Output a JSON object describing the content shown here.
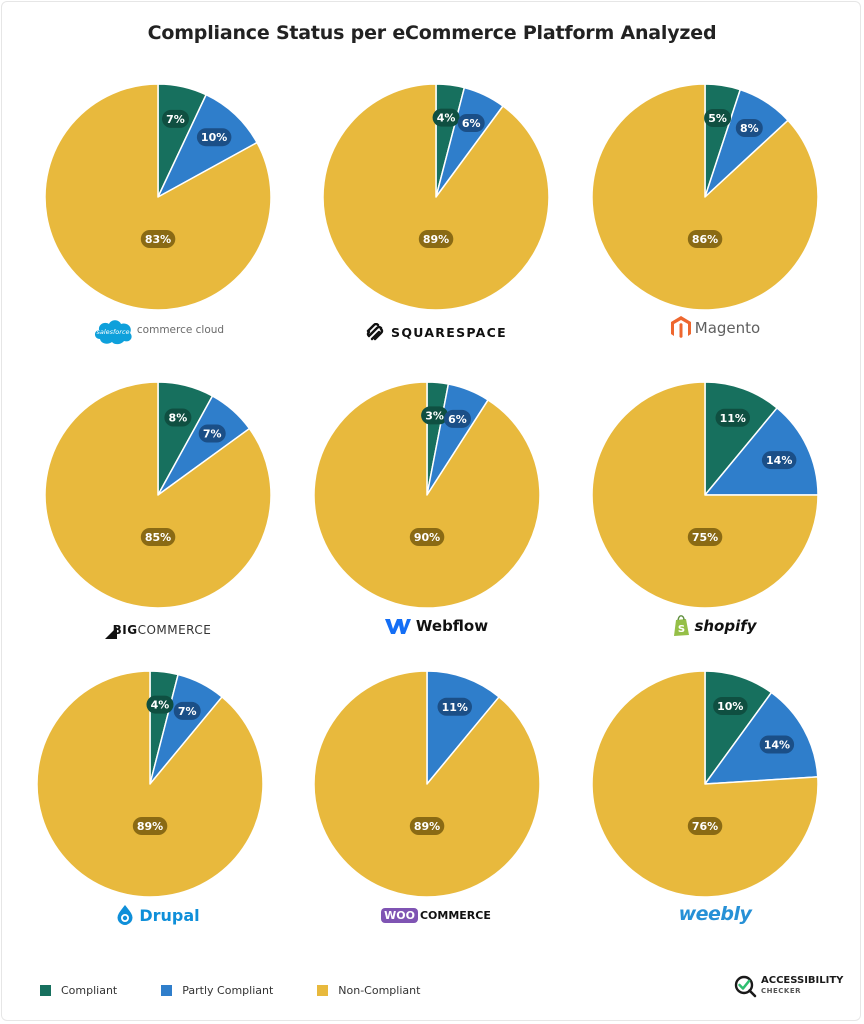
{
  "title": "Compliance Status per eCommerce Platform Analyzed",
  "colors": {
    "compliant": "#17705e",
    "partly": "#2f7ecb",
    "non": "#e8b93d"
  },
  "chart_data": [
    {
      "type": "pie",
      "platform": "salesforce commerce cloud",
      "categories": [
        "Compliant",
        "Partly Compliant",
        "Non-Compliant"
      ],
      "values": [
        7,
        10,
        83
      ],
      "labels": [
        "7%",
        "10%",
        "83%"
      ]
    },
    {
      "type": "pie",
      "platform": "SQUARESPACE",
      "categories": [
        "Compliant",
        "Partly Compliant",
        "Non-Compliant"
      ],
      "values": [
        4,
        6,
        89
      ],
      "labels": [
        "4%",
        "6%",
        "89%"
      ]
    },
    {
      "type": "pie",
      "platform": "Magento",
      "categories": [
        "Compliant",
        "Partly Compliant",
        "Non-Compliant"
      ],
      "values": [
        5,
        8,
        86
      ],
      "labels": [
        "5%",
        "8%",
        "86%"
      ]
    },
    {
      "type": "pie",
      "platform": "BIGCOMMERCE",
      "categories": [
        "Compliant",
        "Partly Compliant",
        "Non-Compliant"
      ],
      "values": [
        8,
        7,
        85
      ],
      "labels": [
        "8%",
        "7%",
        "85%"
      ]
    },
    {
      "type": "pie",
      "platform": "Webflow",
      "categories": [
        "Compliant",
        "Partly Compliant",
        "Non-Compliant"
      ],
      "values": [
        3,
        6,
        90
      ],
      "labels": [
        "3%",
        "6%",
        "90%"
      ]
    },
    {
      "type": "pie",
      "platform": "shopify",
      "categories": [
        "Compliant",
        "Partly Compliant",
        "Non-Compliant"
      ],
      "values": [
        11,
        14,
        75
      ],
      "labels": [
        "11%",
        "14%",
        "75%"
      ]
    },
    {
      "type": "pie",
      "platform": "Drupal",
      "categories": [
        "Compliant",
        "Partly Compliant",
        "Non-Compliant"
      ],
      "values": [
        4,
        7,
        89
      ],
      "labels": [
        "4%",
        "7%",
        "89%"
      ]
    },
    {
      "type": "pie",
      "platform": "WOOCOMMERCE",
      "categories": [
        "Compliant",
        "Partly Compliant",
        "Non-Compliant"
      ],
      "values": [
        0,
        11,
        89
      ],
      "labels": [
        "",
        "11%",
        "89%"
      ]
    },
    {
      "type": "pie",
      "platform": "weebly",
      "categories": [
        "Compliant",
        "Partly Compliant",
        "Non-Compliant"
      ],
      "values": [
        10,
        14,
        76
      ],
      "labels": [
        "10%",
        "14%",
        "76%"
      ]
    }
  ],
  "logos": {
    "salesforce_badge": "salesforce",
    "salesforce_text": "commerce cloud",
    "squarespace": "SQUARESPACE",
    "magento": "Magento",
    "big": "BIG",
    "commerce": "COMMERCE",
    "webflow": "Webflow",
    "shopify": "shopify",
    "drupal": "Drupal",
    "woo": "WOO",
    "woo_commerce": "COMMERCE",
    "weebly": "weebly"
  },
  "legend": [
    {
      "label": "Compliant",
      "color": "#17705e"
    },
    {
      "label": "Partly Compliant",
      "color": "#2f7ecb"
    },
    {
      "label": "Non-Compliant",
      "color": "#e8b93d"
    }
  ],
  "brand": {
    "line1": "ACCESSIBILITY",
    "line2": "CHECKER"
  }
}
